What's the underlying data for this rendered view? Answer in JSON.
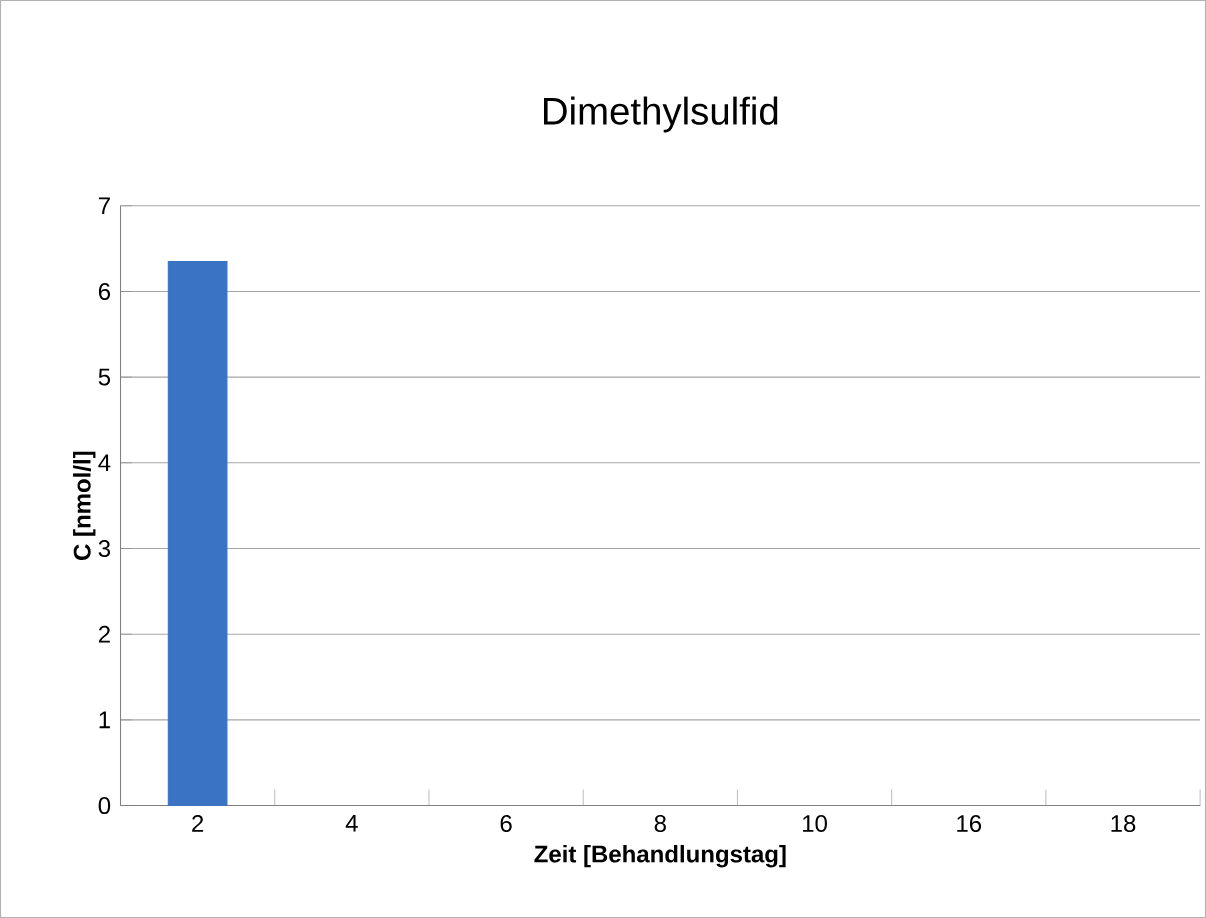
{
  "chart_data": {
    "type": "bar",
    "title": "Dimethylsulfid",
    "xlabel": "Zeit [Behandlungstag]",
    "ylabel": "C [nmol/l]",
    "categories": [
      "2",
      "4",
      "6",
      "8",
      "10",
      "16",
      "18"
    ],
    "values": [
      6.35,
      null,
      null,
      null,
      null,
      null,
      null
    ],
    "color": "#3a73c4",
    "ylim": [
      0,
      7
    ],
    "yticks": [
      0,
      1,
      2,
      3,
      4,
      5,
      6,
      7
    ],
    "grid": "y"
  }
}
